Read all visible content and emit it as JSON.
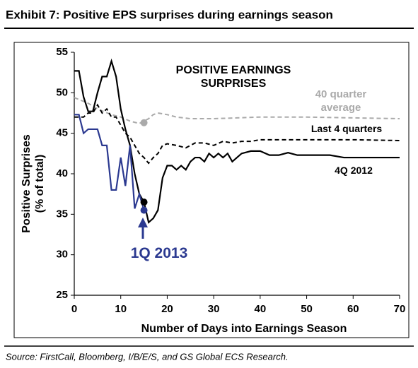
{
  "chart_data": {
    "type": "line",
    "title": "Exhibit 7: Positive EPS surprises during earnings season",
    "source": "Source: FirstCall, Bloomberg, I/B/E/S, and GS Global ECS Research.",
    "annotation": "POSITIVE EARNINGS SURPRISES",
    "xlabel": "Number of Days into Earnings Season",
    "ylabel": [
      "Positive Surprises",
      "(% of total)"
    ],
    "xlim": [
      0,
      70
    ],
    "xticks": [
      0,
      10,
      20,
      30,
      40,
      50,
      60,
      70
    ],
    "ylim": [
      25,
      55
    ],
    "yticks": [
      25,
      30,
      35,
      40,
      45,
      50,
      55
    ],
    "grid": false,
    "series": [
      {
        "name": "40 quarter average",
        "color": "#aaaaaa",
        "dash": true,
        "x": [
          0,
          3,
          5,
          8,
          10,
          12,
          14,
          15,
          16,
          17,
          18,
          20,
          22,
          25,
          30,
          35,
          40,
          50,
          60,
          70
        ],
        "values": [
          49.4,
          48.7,
          48,
          47.3,
          47,
          46.5,
          46.2,
          46.5,
          46.8,
          47.3,
          47.5,
          47.3,
          47,
          46.8,
          46.8,
          46.9,
          47,
          47,
          46.9,
          46.8
        ]
      },
      {
        "name": "Last 4 quarters",
        "color": "#000000",
        "dash": true,
        "x": [
          0,
          2,
          3,
          4,
          5,
          6,
          7,
          8,
          9,
          10,
          11,
          12,
          13,
          14,
          15,
          16,
          17,
          18,
          19,
          20,
          22,
          24,
          26,
          28,
          30,
          32,
          34,
          36,
          38,
          40,
          50,
          60,
          70
        ],
        "values": [
          47,
          47,
          47.5,
          47.5,
          48.5,
          47.5,
          48,
          47,
          47,
          46,
          45,
          44.5,
          43.5,
          42.5,
          42,
          41.3,
          42,
          42.5,
          43.5,
          43.7,
          43.5,
          43.2,
          43.8,
          43.8,
          43.5,
          44,
          43.8,
          44,
          44,
          44.2,
          44.2,
          44.2,
          44.1
        ]
      },
      {
        "name": "4Q 2012",
        "color": "#000000",
        "dash": false,
        "x": [
          0,
          1,
          2,
          3,
          4,
          5,
          6,
          7,
          8,
          9,
          10,
          11,
          12,
          13,
          14,
          15,
          16,
          17,
          18,
          19,
          20,
          21,
          22,
          23,
          24,
          25,
          26,
          27,
          28,
          29,
          30,
          31,
          32,
          33,
          34,
          35,
          36,
          38,
          40,
          42,
          44,
          46,
          48,
          50,
          55,
          58,
          60,
          65,
          70
        ],
        "values": [
          52.7,
          52.7,
          49.5,
          47.7,
          47.7,
          50,
          52,
          52,
          53.9,
          52,
          48,
          45.5,
          43.5,
          40,
          37.5,
          36.5,
          34,
          34.5,
          35.5,
          39.5,
          41,
          41,
          40.5,
          41,
          40.5,
          41.5,
          42,
          42,
          41.5,
          42.5,
          42,
          42.5,
          42,
          42.5,
          41.5,
          42,
          42.5,
          42.8,
          42.8,
          42.3,
          42.3,
          42.6,
          42.3,
          42.3,
          42.3,
          42,
          42,
          42,
          42
        ]
      },
      {
        "name": "1Q 2013",
        "color": "#2b3990",
        "dash": false,
        "x": [
          0,
          1,
          2,
          3,
          4,
          5,
          6,
          7,
          8,
          9,
          10,
          11,
          12,
          13,
          14,
          15
        ],
        "values": [
          47.3,
          47.3,
          45,
          45.5,
          45.5,
          45.5,
          43.5,
          43.5,
          38,
          38,
          42,
          38.5,
          43.5,
          35.7,
          37.5,
          35.5
        ]
      }
    ],
    "points": [
      {
        "x": 15,
        "y": 46.3,
        "color": "#aaaaaa"
      },
      {
        "x": 15,
        "y": 36.5,
        "color": "#000000"
      },
      {
        "x": 15,
        "y": 35.5,
        "color": "#2b3990"
      }
    ]
  }
}
